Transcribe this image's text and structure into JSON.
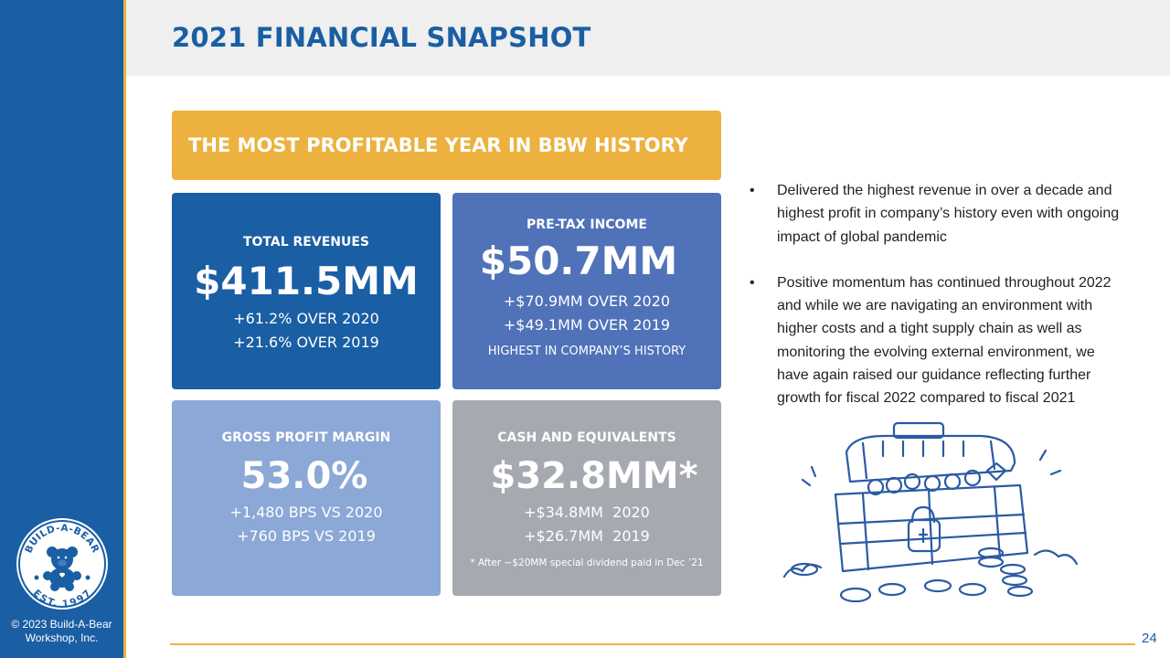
{
  "header": {
    "title": "2021 FINANCIAL SNAPSHOT"
  },
  "banner": {
    "text": "THE MOST PROFITABLE YEAR IN BBW HISTORY"
  },
  "cards": {
    "total_revenues": {
      "label": "TOTAL REVENUES",
      "value": "$411.5MM",
      "lines": [
        "+61.2% OVER 2020",
        "+21.6% OVER 2019"
      ]
    },
    "pretax_income": {
      "label": "PRE-TAX INCOME",
      "value": "$50.7MM",
      "lines": [
        "+$70.9MM OVER 2020",
        "+$49.1MM OVER 2019"
      ],
      "note": "HIGHEST IN COMPANY’S HISTORY"
    },
    "gross_margin": {
      "label": "GROSS PROFIT MARGIN",
      "value": "53.0%",
      "lines": [
        "+1,480 BPS VS 2020",
        "+760 BPS VS 2019"
      ]
    },
    "cash": {
      "label": "CASH AND EQUIVALENTS",
      "value": "$32.8MM*",
      "lines": [
        "+$34.8MM  2020",
        "+$26.7MM  2019"
      ],
      "note": "* After ~$20MM special dividend paid in Dec ’21"
    }
  },
  "bullets": {
    "marker": "•",
    "items": [
      "Delivered the highest revenue in over a decade and highest profit in company’s history even with ongoing impact of global pandemic",
      "Positive momentum has continued throughout 2022 and while we are navigating an environment with higher costs and a tight supply chain as well as monitoring the evolving external environment, we have again raised our guidance reflecting further growth for fiscal 2022 compared to fiscal 2021"
    ]
  },
  "logo": {
    "top_text": "BUILD-A-BEAR",
    "bottom_text": "EST. 1997"
  },
  "footer": {
    "copyright_line1": "© 2023 Build-A-Bear",
    "copyright_line2": "Workshop, Inc.",
    "page_number": "24"
  },
  "colors": {
    "navy": "#1a5ea4",
    "gold": "#ecb13e",
    "card_blue": "#4f72b8",
    "card_light": "#8ba8d6",
    "card_gray": "#a7a9b1"
  },
  "icons": {
    "illustration": "treasure-chest-icon",
    "logo": "build-a-bear-logo"
  }
}
